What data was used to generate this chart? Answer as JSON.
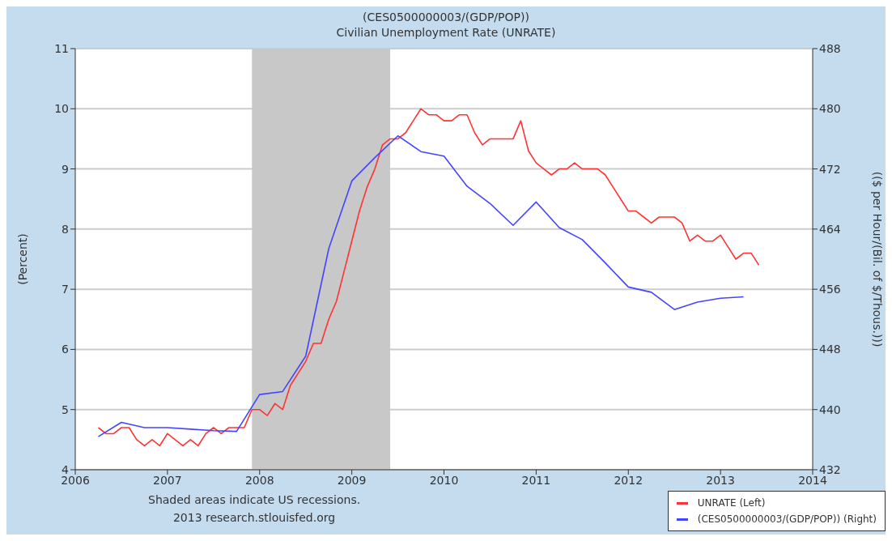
{
  "chart_data": {
    "type": "line",
    "title": "(CES0500000003/(GDP/POP))",
    "subtitle": "Civilian Unemployment Rate (UNRATE)",
    "ylabel": "(Percent)",
    "y2label": "(($ per Hour/(Bil. of $/Thous.)))",
    "xlim": [
      "2006",
      "2014"
    ],
    "xticks": [
      "2006",
      "2007",
      "2008",
      "2009",
      "2010",
      "2011",
      "2012",
      "2013",
      "2014"
    ],
    "ylim": [
      4,
      11
    ],
    "yticks": [
      4,
      5,
      6,
      7,
      8,
      9,
      10,
      11
    ],
    "y2lim": [
      432,
      488
    ],
    "y2ticks": [
      432,
      440,
      448,
      456,
      464,
      472,
      480,
      488
    ],
    "grid": "y",
    "legend": "bottom right",
    "marker": "none",
    "line_style": "solid",
    "bands": [
      {
        "axis": "x",
        "from": "2007-12",
        "to": "2009-06",
        "color": "#c8c8c8"
      }
    ],
    "annotations": [
      "Shaded areas indicate US recessions.",
      "2013 research.stlouisfed.org"
    ],
    "series": [
      {
        "name": "UNRATE (Left)",
        "color": "#ff3333",
        "x": [
          "2006-04",
          "2006-05",
          "2006-06",
          "2006-07",
          "2006-08",
          "2006-09",
          "2006-10",
          "2006-11",
          "2006-12",
          "2007-01",
          "2007-02",
          "2007-03",
          "2007-04",
          "2007-05",
          "2007-06",
          "2007-07",
          "2007-08",
          "2007-09",
          "2007-10",
          "2007-11",
          "2007-12",
          "2008-01",
          "2008-02",
          "2008-03",
          "2008-04",
          "2008-05",
          "2008-06",
          "2008-07",
          "2008-08",
          "2008-09",
          "2008-10",
          "2008-11",
          "2008-12",
          "2009-01",
          "2009-02",
          "2009-03",
          "2009-04",
          "2009-05",
          "2009-06",
          "2009-07",
          "2009-08",
          "2009-09",
          "2009-10",
          "2009-11",
          "2009-12",
          "2010-01",
          "2010-02",
          "2010-03",
          "2010-04",
          "2010-05",
          "2010-06",
          "2010-07",
          "2010-08",
          "2010-09",
          "2010-10",
          "2010-11",
          "2010-12",
          "2011-01",
          "2011-02",
          "2011-03",
          "2011-04",
          "2011-05",
          "2011-06",
          "2011-07",
          "2011-08",
          "2011-09",
          "2011-10",
          "2011-11",
          "2011-12",
          "2012-01",
          "2012-02",
          "2012-03",
          "2012-04",
          "2012-05",
          "2012-06",
          "2012-07",
          "2012-08",
          "2012-09",
          "2012-10",
          "2012-11",
          "2012-12",
          "2013-01",
          "2013-02",
          "2013-03",
          "2013-04",
          "2013-05",
          "2013-06"
        ],
        "values": [
          4.7,
          4.6,
          4.6,
          4.7,
          4.7,
          4.5,
          4.4,
          4.5,
          4.4,
          4.6,
          4.5,
          4.4,
          4.5,
          4.4,
          4.6,
          4.7,
          4.6,
          4.7,
          4.7,
          4.7,
          5.0,
          5.0,
          4.9,
          5.1,
          5.0,
          5.4,
          5.6,
          5.8,
          6.1,
          6.1,
          6.5,
          6.8,
          7.3,
          7.8,
          8.3,
          8.7,
          9.0,
          9.4,
          9.5,
          9.5,
          9.6,
          9.8,
          10.0,
          9.9,
          9.9,
          9.8,
          9.8,
          9.9,
          9.9,
          9.6,
          9.4,
          9.5,
          9.5,
          9.5,
          9.5,
          9.8,
          9.3,
          9.1,
          9.0,
          8.9,
          9.0,
          9.0,
          9.1,
          9.0,
          9.0,
          9.0,
          8.9,
          8.7,
          8.5,
          8.3,
          8.3,
          8.2,
          8.1,
          8.2,
          8.2,
          8.2,
          8.1,
          7.8,
          7.9,
          7.8,
          7.8,
          7.9,
          7.7,
          7.5,
          7.6,
          7.6,
          7.4
        ]
      },
      {
        "name": "(CES0500000003/(GDP/POP)) (Right)",
        "color": "#4444ff",
        "axis": "y2",
        "x": [
          "2006-04",
          "2006-07",
          "2006-10",
          "2007-01",
          "2007-04",
          "2007-07",
          "2007-10",
          "2008-01",
          "2008-04",
          "2008-07",
          "2008-10",
          "2009-01",
          "2009-04",
          "2009-07",
          "2009-10",
          "2010-01",
          "2010-04",
          "2010-07",
          "2010-10",
          "2011-01",
          "2011-04",
          "2011-07",
          "2011-10",
          "2012-01",
          "2012-04",
          "2012-07",
          "2012-10",
          "2013-01",
          "2013-04"
        ],
        "values": [
          436.4,
          438.3,
          437.6,
          437.6,
          437.4,
          437.2,
          437.1,
          442.0,
          442.4,
          447.1,
          461.4,
          470.4,
          473.5,
          476.4,
          474.3,
          473.7,
          469.7,
          467.4,
          464.5,
          467.6,
          464.2,
          462.6,
          459.5,
          456.3,
          455.6,
          453.3,
          454.3,
          454.8,
          455.0
        ]
      }
    ]
  }
}
